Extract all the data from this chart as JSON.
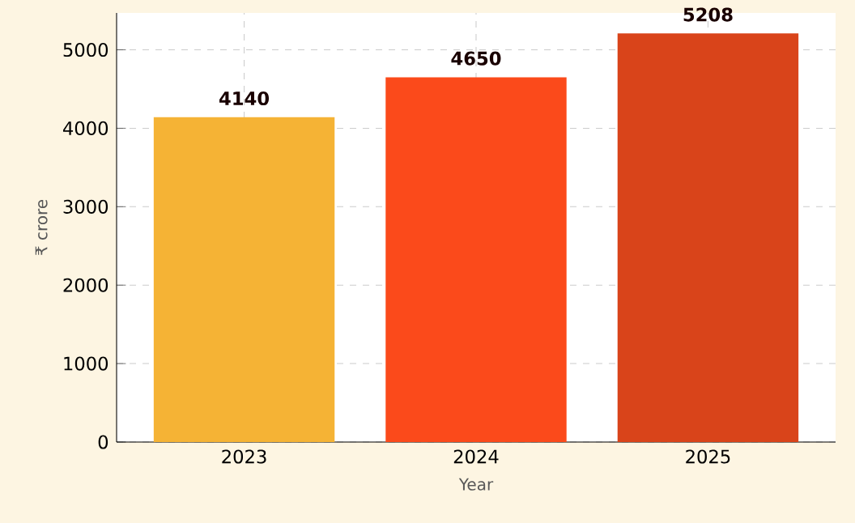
{
  "chart_data": {
    "type": "bar",
    "xlabel": "Year",
    "ylabel": "₹ crore",
    "categories": [
      "2023",
      "2024",
      "2025"
    ],
    "values": [
      4140,
      4650,
      5208
    ],
    "colors": [
      "#f5b335",
      "#fb4a1b",
      "#d9441a"
    ],
    "ylim": [
      0,
      5470
    ],
    "yticks": [
      0,
      1000,
      2000,
      3000,
      4000,
      5000
    ],
    "grid": true,
    "data_labels": true
  }
}
